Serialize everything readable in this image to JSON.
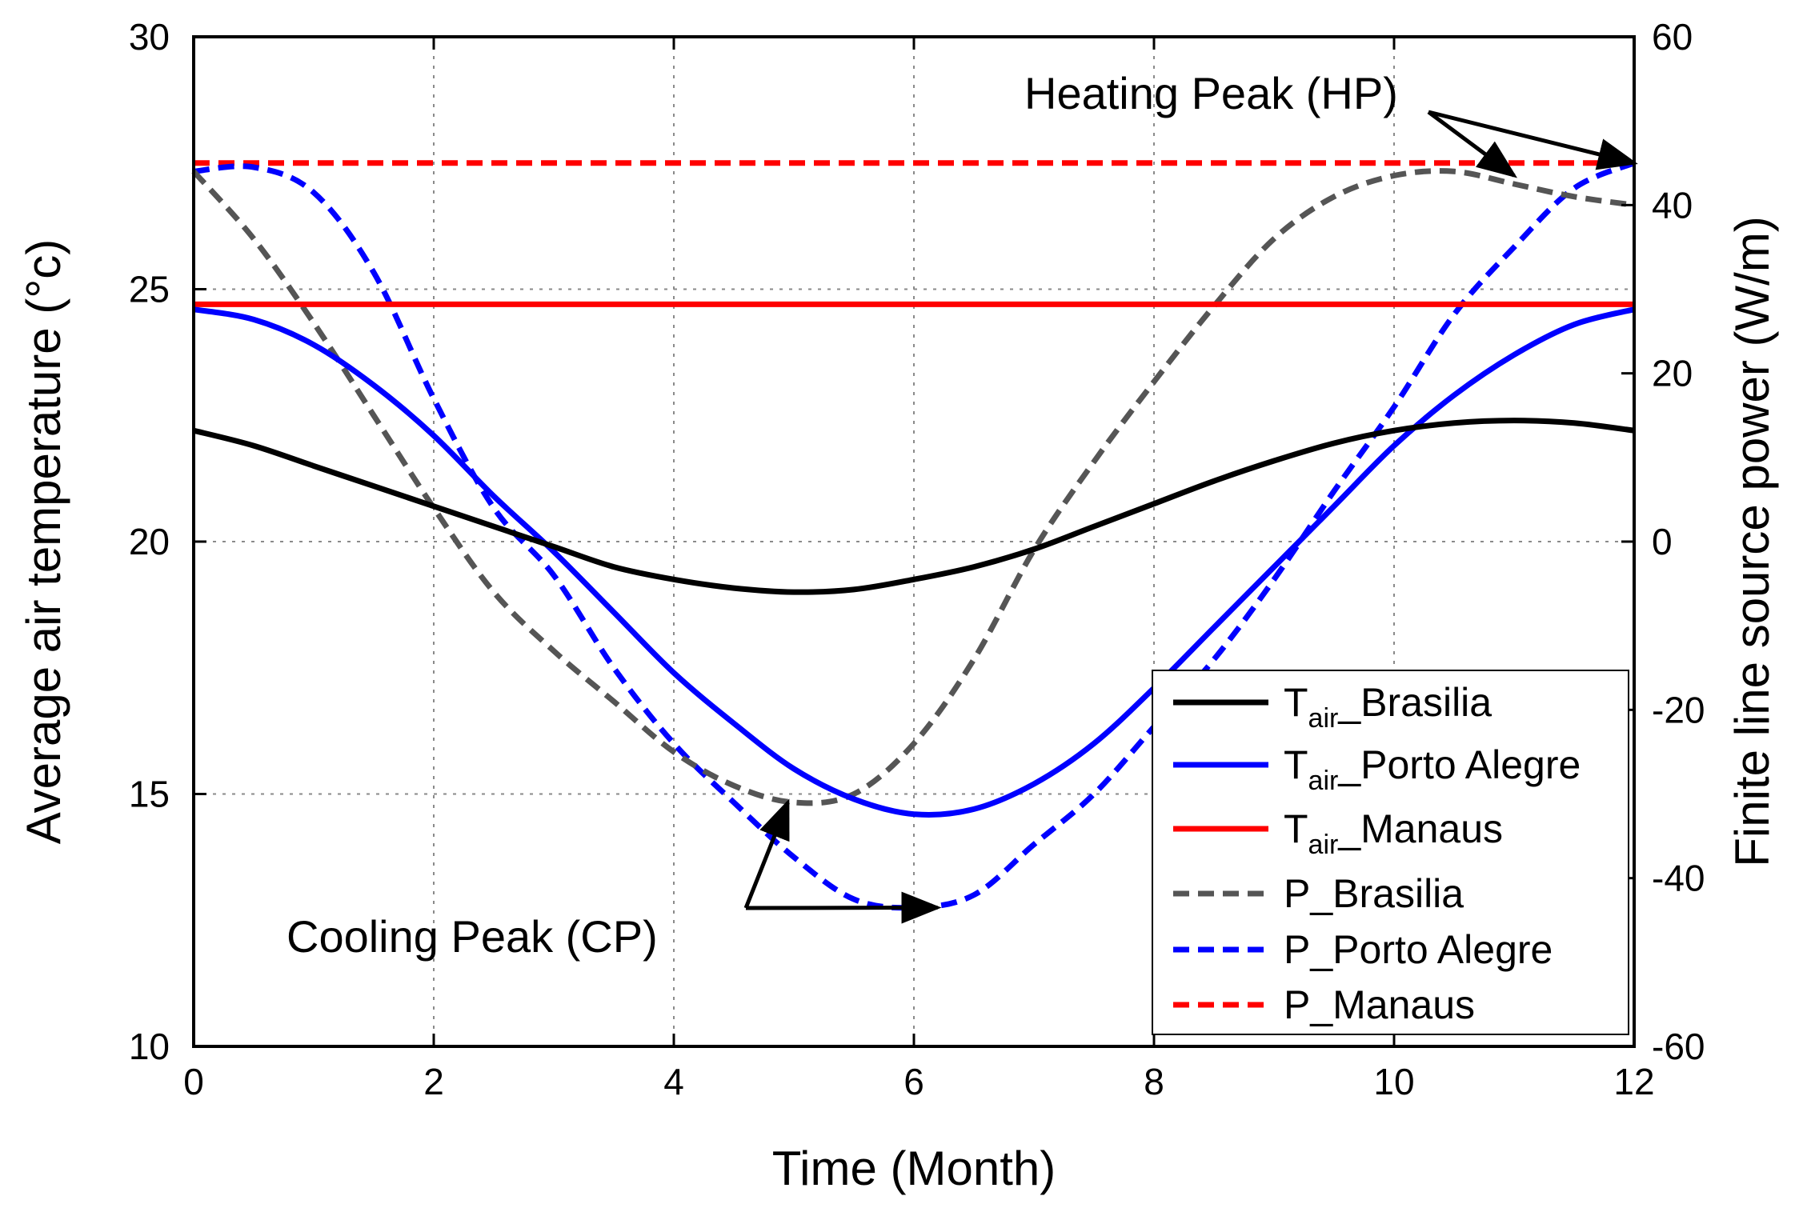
{
  "chart_data": {
    "type": "line",
    "title": "",
    "xlabel": "Time (Month)",
    "ylabel": "Average air temperature (°c)",
    "y2label": "Finite line source power (W/m)",
    "xlim": [
      0,
      12
    ],
    "ylim": [
      10,
      30
    ],
    "y2lim": [
      -60,
      60
    ],
    "xticks": [
      "0",
      "2",
      "4",
      "6",
      "8",
      "10",
      "12"
    ],
    "yticks": [
      "10",
      "15",
      "20",
      "25",
      "30"
    ],
    "y2ticks": [
      "-60",
      "-40",
      "-20",
      "0",
      "20",
      "40",
      "60"
    ],
    "grid": true,
    "legend_position": "bottom-right",
    "x": [
      0,
      0.5,
      1,
      1.5,
      2,
      2.5,
      3,
      3.5,
      4,
      4.5,
      5,
      5.5,
      6,
      6.5,
      7,
      7.5,
      8,
      8.5,
      9,
      9.5,
      10,
      10.5,
      11,
      11.5,
      12
    ],
    "series": [
      {
        "name": "T_air_Brasilia",
        "legend_main": "T",
        "legend_sub": "air",
        "legend_rest": "_Brasilia",
        "axis": "left",
        "color": "#000000",
        "dash": "solid",
        "values": [
          22.2,
          21.9,
          21.5,
          21.1,
          20.7,
          20.3,
          19.9,
          19.5,
          19.25,
          19.08,
          19.0,
          19.05,
          19.25,
          19.5,
          19.85,
          20.3,
          20.75,
          21.2,
          21.6,
          21.95,
          22.2,
          22.35,
          22.4,
          22.35,
          22.2
        ]
      },
      {
        "name": "T_air_Porto Alegre",
        "legend_main": "T",
        "legend_sub": "air",
        "legend_rest": "_Porto Alegre",
        "axis": "left",
        "color": "#0000ff",
        "dash": "solid",
        "values": [
          24.6,
          24.4,
          23.9,
          23.1,
          22.1,
          20.9,
          19.8,
          18.6,
          17.4,
          16.4,
          15.5,
          14.9,
          14.6,
          14.7,
          15.2,
          16.0,
          17.1,
          18.3,
          19.5,
          20.7,
          21.9,
          22.9,
          23.7,
          24.3,
          24.6
        ]
      },
      {
        "name": "T_air_Manaus",
        "legend_main": "T",
        "legend_sub": "air",
        "legend_rest": "_Manaus",
        "axis": "left",
        "color": "#ff0000",
        "dash": "solid",
        "values": [
          24.7,
          24.7,
          24.7,
          24.7,
          24.7,
          24.7,
          24.7,
          24.7,
          24.7,
          24.7,
          24.7,
          24.7,
          24.7,
          24.7,
          24.7,
          24.7,
          24.7,
          24.7,
          24.7,
          24.7,
          24.7,
          24.7,
          24.7,
          24.7,
          24.7
        ]
      },
      {
        "name": "P_Brasilia",
        "legend_main": "P_Brasilia",
        "legend_sub": "",
        "legend_rest": "",
        "axis": "right",
        "color": "#555555",
        "dash": "dashed",
        "values": [
          44.0,
          36.0,
          26.0,
          15.0,
          4.0,
          -6.0,
          -13.0,
          -19.0,
          -25.0,
          -29.0,
          -31.0,
          -30.0,
          -24.0,
          -14.0,
          -1.0,
          9.5,
          19.0,
          28.0,
          36.0,
          41.0,
          43.5,
          44.0,
          42.5,
          41.0,
          40.0
        ]
      },
      {
        "name": "P_Porto Alegre",
        "legend_main": "P_Porto Alegre",
        "legend_sub": "",
        "legend_rest": "",
        "axis": "right",
        "color": "#0000ff",
        "dash": "dashed",
        "values": [
          44.0,
          44.5,
          41.5,
          32.0,
          17.0,
          4.0,
          -4.0,
          -15.0,
          -24.0,
          -31.0,
          -37.5,
          -42.5,
          -43.5,
          -42.0,
          -36.0,
          -30.0,
          -22.0,
          -14.0,
          -4.5,
          6.0,
          16.0,
          27.0,
          35.0,
          42.0,
          45.0
        ]
      },
      {
        "name": "P_Manaus",
        "legend_main": "P_Manaus",
        "legend_sub": "",
        "legend_rest": "",
        "axis": "right",
        "color": "#ff0000",
        "dash": "dashed",
        "values": [
          45.0,
          45.0,
          45.0,
          45.0,
          45.0,
          45.0,
          45.0,
          45.0,
          45.0,
          45.0,
          45.0,
          45.0,
          45.0,
          45.0,
          45.0,
          45.0,
          45.0,
          45.0,
          45.0,
          45.0,
          45.0,
          45.0,
          45.0,
          45.0,
          45.0
        ]
      }
    ],
    "annotations": [
      {
        "text": "Heating Peak (HP)",
        "label_x": 10.8,
        "label_y2": 53,
        "points_to": [
          {
            "x": 11.0,
            "y2": 43.5
          },
          {
            "x": 12.0,
            "y2": 45.0
          }
        ]
      },
      {
        "text": "Cooling Peak (CP)",
        "label_x": 4.6,
        "label_y": 12.8,
        "points_to": [
          {
            "x": 4.95,
            "y2": -31.0
          },
          {
            "x": 6.25,
            "y2": -43.5
          }
        ]
      }
    ]
  }
}
